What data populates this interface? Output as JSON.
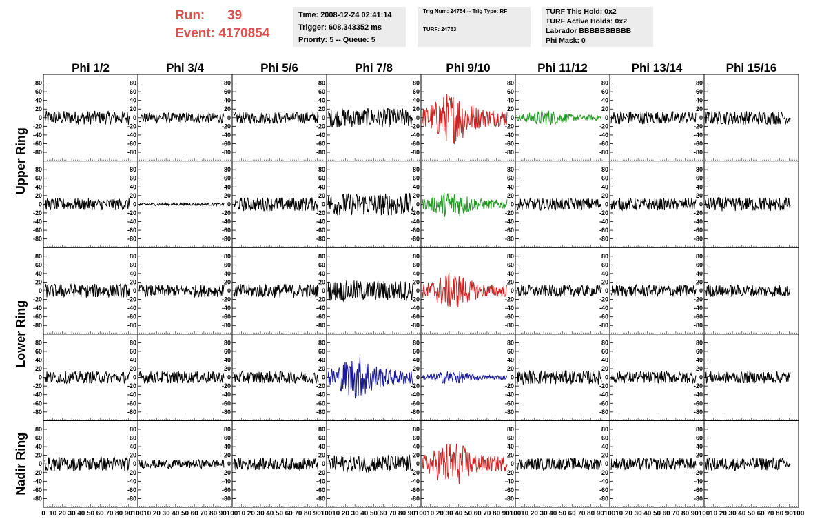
{
  "header": {
    "run_label": "Run:",
    "run_value": "39",
    "event_label": "Event:",
    "event_value": "4170854",
    "color": "#d9534f"
  },
  "info_time": {
    "time": "Time: 2008-12-24 02:41:14",
    "trigger": "Trigger: 608.343352 ms",
    "priority": "Priority: 5 -- Queue: 5"
  },
  "info_trig": {
    "trig": "Trig Num: 24754 -- Trig Type: RF",
    "turf": "TURF: 24763"
  },
  "info_turf": {
    "this_hold": "TURF This Hold: 0x2",
    "active_holds": "TURF Active Holds: 0x2",
    "labrador": "Labrador BBBBBBBBBB",
    "phi_mask": "Phi Mask: 0"
  },
  "chart_data": {
    "type": "line",
    "columns": [
      "Phi 1/2",
      "Phi 3/4",
      "Phi 5/6",
      "Phi 7/8",
      "Phi 9/10",
      "Phi 11/12",
      "Phi 13/14",
      "Phi 15/16"
    ],
    "row_groups": [
      "Upper Ring",
      "Lower Ring",
      "Nadir Ring"
    ],
    "y_ticks": [
      80,
      60,
      40,
      20,
      0,
      -20,
      -40,
      -60,
      -80
    ],
    "x_ticks": [
      "0",
      "10",
      "20",
      "30",
      "40",
      "50",
      "60",
      "70",
      "80",
      "90",
      "100"
    ],
    "ylim": [
      -100,
      100
    ],
    "xlim": [
      0,
      100
    ],
    "colors": {
      "default": "#000000",
      "red": "#cc2222",
      "green": "#229922",
      "blue": "#1a1a99"
    },
    "trace_colors": [
      [
        "default",
        "default",
        "default",
        "default",
        "red",
        "green",
        "default",
        "default"
      ],
      [
        "default",
        "default",
        "default",
        "default",
        "green",
        "default",
        "default",
        "default"
      ],
      [
        "default",
        "default",
        "default",
        "default",
        "red",
        "default",
        "default",
        "default"
      ],
      [
        "default",
        "default",
        "default",
        "blue",
        "blue",
        "default",
        "default",
        "default"
      ],
      [
        "default",
        "default",
        "default",
        "default",
        "red",
        "default",
        "default",
        "default"
      ]
    ],
    "trace_amplitude": [
      [
        16,
        12,
        14,
        22,
        45,
        14,
        15,
        16
      ],
      [
        14,
        3,
        16,
        26,
        24,
        14,
        14,
        16
      ],
      [
        16,
        14,
        16,
        24,
        32,
        14,
        14,
        14
      ],
      [
        14,
        14,
        14,
        38,
        12,
        16,
        14,
        14
      ],
      [
        16,
        10,
        14,
        20,
        40,
        14,
        14,
        15
      ]
    ]
  }
}
